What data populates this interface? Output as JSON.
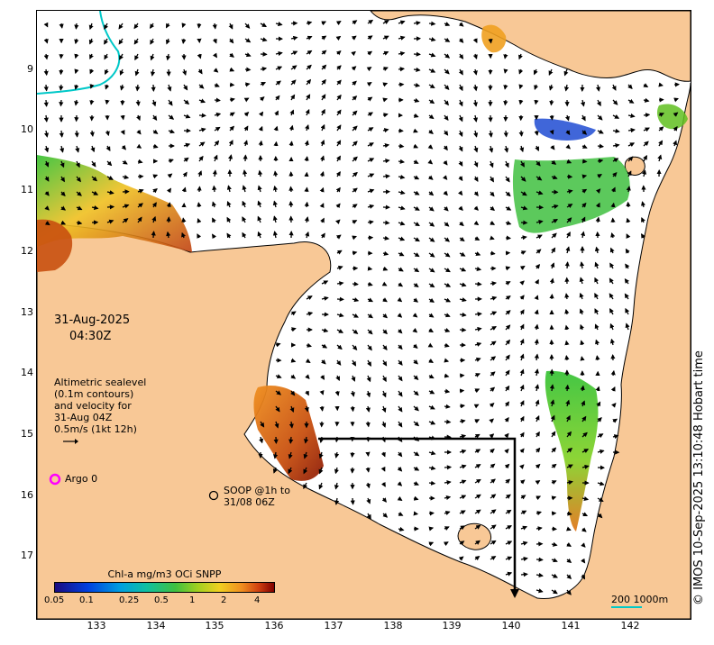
{
  "map": {
    "date": "31-Aug-2025",
    "time": "04:30Z",
    "legend_lines": [
      "Altimetric sealevel",
      "(0.1m contours)",
      "and velocity for",
      "31-Aug 04Z",
      "0.5m/s (1kt 12h)"
    ],
    "argo_label": "Argo 0",
    "soop_lines": [
      "SOOP @1h to",
      "31/08 06Z"
    ],
    "credit": "© IMOS 10-Sep-2025 13:10:48 Hobart time",
    "colorbar_title": "Chl-a mg/m3 OCi SNPP",
    "colorbar_ticks": [
      "0.05",
      "0.1",
      "0.25",
      "0.5",
      "1",
      "2",
      "4"
    ],
    "scale_label": "200  1000m",
    "lon_ticks": [
      "133",
      "134",
      "135",
      "136",
      "137",
      "138",
      "139",
      "140",
      "141",
      "142"
    ],
    "lat_ticks": [
      "9",
      "10",
      "11",
      "12",
      "13",
      "14",
      "15",
      "16",
      "17"
    ],
    "colors": {
      "land": "#f8c896",
      "ocean": "#ffffff",
      "argo": "#ff00ff",
      "bathymetry_contour": "#00c8c8",
      "chl_low": "#0000a0",
      "chl_mid": "#30c030",
      "chl_high": "#800000"
    }
  }
}
